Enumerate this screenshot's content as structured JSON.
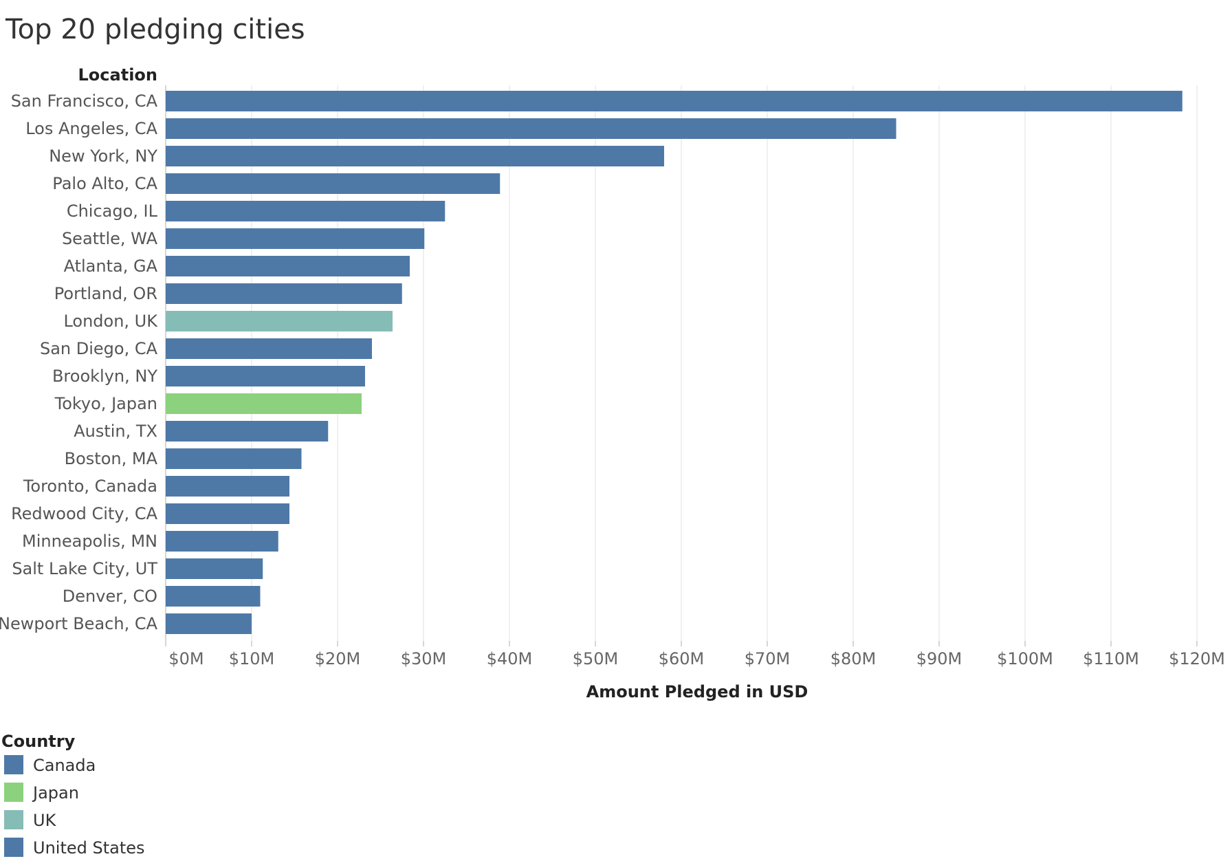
{
  "chart_data": {
    "type": "bar",
    "orientation": "horizontal",
    "title": "Top 20 pledging cities",
    "category_header": "Location",
    "xlabel": "Amount Pledged in USD",
    "xlim": [
      0,
      120
    ],
    "x_unit": "$M",
    "x_ticks": [
      "$0M",
      "$10M",
      "$20M",
      "$30M",
      "$40M",
      "$50M",
      "$60M",
      "$70M",
      "$80M",
      "$90M",
      "$100M",
      "$110M",
      "$120M"
    ],
    "x_tick_values": [
      0,
      10,
      20,
      30,
      40,
      50,
      60,
      70,
      80,
      90,
      100,
      110,
      120
    ],
    "grid": true,
    "bars": [
      {
        "label": "San Francisco, CA",
        "value": 118.3,
        "country": "United States"
      },
      {
        "label": "Los Angeles, CA",
        "value": 85.0,
        "country": "United States"
      },
      {
        "label": "New York, NY",
        "value": 58.0,
        "country": "United States"
      },
      {
        "label": "Palo Alto, CA",
        "value": 38.9,
        "country": "United States"
      },
      {
        "label": "Chicago, IL",
        "value": 32.5,
        "country": "United States"
      },
      {
        "label": "Seattle, WA",
        "value": 30.1,
        "country": "United States"
      },
      {
        "label": "Atlanta, GA",
        "value": 28.4,
        "country": "United States"
      },
      {
        "label": "Portland, OR",
        "value": 27.5,
        "country": "United States"
      },
      {
        "label": "London, UK",
        "value": 26.4,
        "country": "UK"
      },
      {
        "label": "San Diego, CA",
        "value": 24.0,
        "country": "United States"
      },
      {
        "label": "Brooklyn, NY",
        "value": 23.2,
        "country": "United States"
      },
      {
        "label": "Tokyo, Japan",
        "value": 22.8,
        "country": "Japan"
      },
      {
        "label": "Austin, TX",
        "value": 18.9,
        "country": "United States"
      },
      {
        "label": "Boston, MA",
        "value": 15.8,
        "country": "United States"
      },
      {
        "label": "Toronto, Canada",
        "value": 14.4,
        "country": "Canada"
      },
      {
        "label": "Redwood City, CA",
        "value": 14.4,
        "country": "United States"
      },
      {
        "label": "Minneapolis, MN",
        "value": 13.1,
        "country": "United States"
      },
      {
        "label": "Salt Lake City, UT",
        "value": 11.3,
        "country": "United States"
      },
      {
        "label": "Denver, CO",
        "value": 11.0,
        "country": "United States"
      },
      {
        "label": "Newport Beach, CA",
        "value": 10.0,
        "country": "United States"
      }
    ],
    "legend": {
      "title": "Country",
      "placement": "bottom-left",
      "entries": [
        {
          "name": "Canada",
          "color": "#4e79a7"
        },
        {
          "name": "Japan",
          "color": "#8cd17d"
        },
        {
          "name": "UK",
          "color": "#86bcb6"
        },
        {
          "name": "United States",
          "color": "#4e79a7"
        }
      ]
    }
  }
}
